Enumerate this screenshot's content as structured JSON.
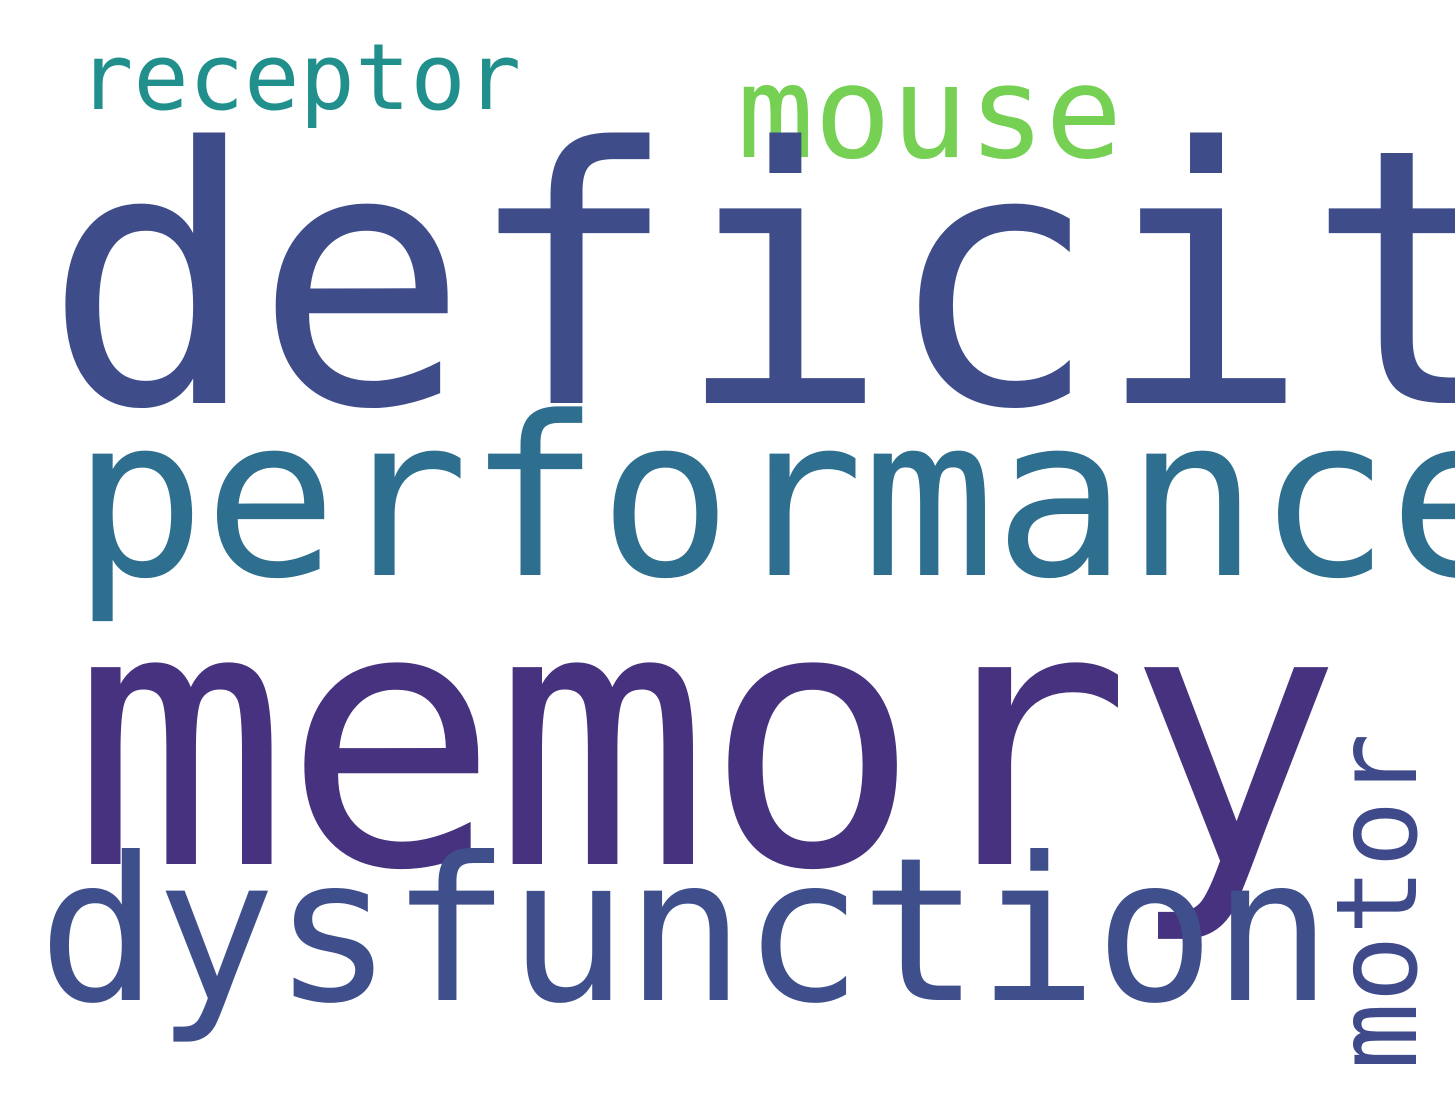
{
  "word_cloud": {
    "words": [
      {
        "key": "memory",
        "text": "memory",
        "color": "#46327e"
      },
      {
        "key": "deficit",
        "text": "deficit",
        "color": "#3e4c8a"
      },
      {
        "key": "performance",
        "text": "performance",
        "color": "#2e6e8e"
      },
      {
        "key": "dysfunction",
        "text": "dysfunction",
        "color": "#3f4f8c"
      },
      {
        "key": "motor",
        "text": "motor",
        "color": "#3f4a8a",
        "orientation": "vertical"
      },
      {
        "key": "mouse",
        "text": "mouse",
        "color": "#75d054"
      },
      {
        "key": "receptor",
        "text": "receptor",
        "color": "#21908d"
      }
    ]
  }
}
